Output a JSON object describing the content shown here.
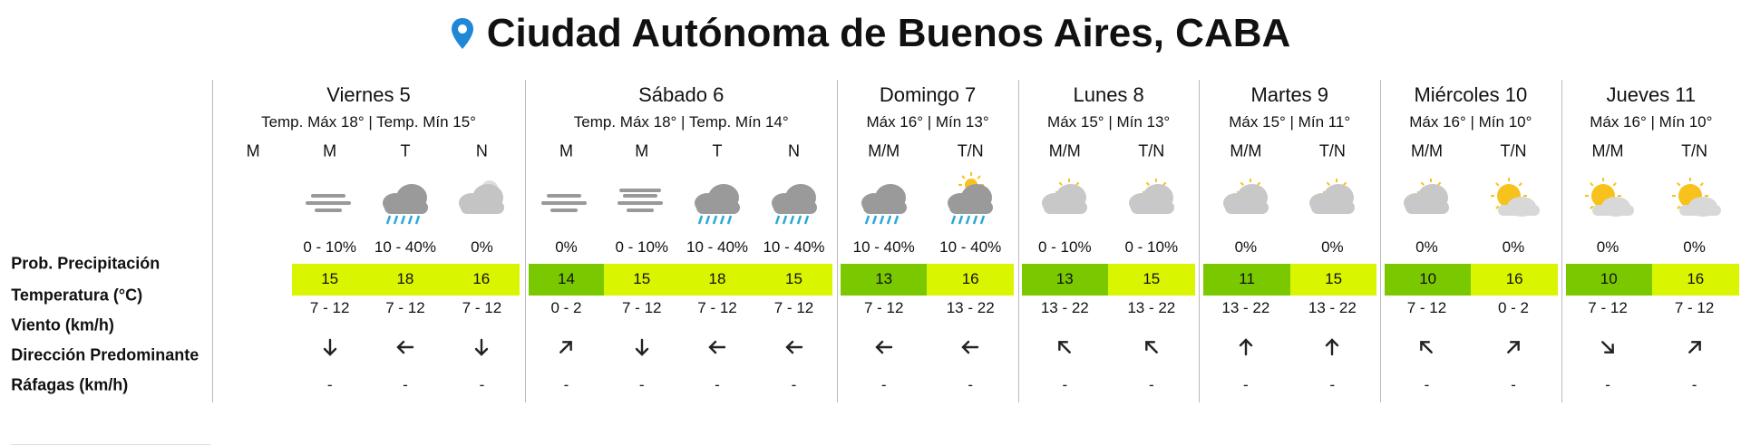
{
  "header": {
    "title": "Ciudad Autónoma de Buenos Aires, CABA"
  },
  "row_labels": [
    "Prob. Precipitación",
    "Temperatura (°C)",
    "Viento (km/h)",
    "Dirección Predominante",
    "Ráfagas (km/h)"
  ],
  "days": [
    {
      "name": "Viernes 5",
      "summary": "Temp. Máx 18° | Temp. Mín 15°",
      "periods": [
        {
          "label": "M"
        },
        {
          "label": "M",
          "precip": "0 - 10%",
          "temp": 15,
          "wind": "7 - 12",
          "gust": "-"
        },
        {
          "label": "T",
          "precip": "10 - 40%",
          "temp": 18,
          "wind": "7 - 12",
          "gust": "-"
        },
        {
          "label": "N",
          "precip": "0%",
          "temp": 16,
          "wind": "7 - 12",
          "gust": "-"
        }
      ]
    },
    {
      "name": "Sábado 6",
      "summary": "Temp. Máx 18° | Temp. Mín 14°",
      "periods": [
        {
          "label": "M",
          "precip": "0%",
          "temp": 14,
          "wind": "0 - 2",
          "gust": "-"
        },
        {
          "label": "M",
          "precip": "0 - 10%",
          "temp": 15,
          "wind": "7 - 12",
          "gust": "-"
        },
        {
          "label": "T",
          "precip": "10 - 40%",
          "temp": 18,
          "wind": "7 - 12",
          "gust": "-"
        },
        {
          "label": "N",
          "precip": "10 - 40%",
          "temp": 15,
          "wind": "7 - 12",
          "gust": "-"
        }
      ]
    },
    {
      "name": "Domingo 7",
      "summary": "Máx 16° | Mín 13°",
      "periods": [
        {
          "label": "M/M",
          "precip": "10 - 40%",
          "temp": 13,
          "wind": "7 - 12",
          "gust": "-"
        },
        {
          "label": "T/N",
          "precip": "10 - 40%",
          "temp": 16,
          "wind": "13 - 22",
          "gust": "-"
        }
      ]
    },
    {
      "name": "Lunes 8",
      "summary": "Máx 15° | Mín 13°",
      "periods": [
        {
          "label": "M/M",
          "precip": "0 - 10%",
          "temp": 13,
          "wind": "13 - 22",
          "gust": "-"
        },
        {
          "label": "T/N",
          "precip": "0 - 10%",
          "temp": 15,
          "wind": "13 - 22",
          "gust": "-"
        }
      ]
    },
    {
      "name": "Martes 9",
      "summary": "Máx 15° | Mín 11°",
      "periods": [
        {
          "label": "M/M",
          "precip": "0%",
          "temp": 11,
          "wind": "13 - 22",
          "gust": "-"
        },
        {
          "label": "T/N",
          "precip": "0%",
          "temp": 15,
          "wind": "13 - 22",
          "gust": "-"
        }
      ]
    },
    {
      "name": "Miércoles 10",
      "summary": "Máx 16° | Mín 10°",
      "periods": [
        {
          "label": "M/M",
          "precip": "0%",
          "temp": 10,
          "wind": "7 - 12",
          "gust": "-"
        },
        {
          "label": "T/N",
          "precip": "0%",
          "temp": 16,
          "wind": "0 - 2",
          "gust": "-"
        }
      ]
    },
    {
      "name": "Jueves 11",
      "summary": "Máx 16° | Mín 10°",
      "periods": [
        {
          "label": "M/M",
          "precip": "0%",
          "temp": 10,
          "wind": "7 - 12",
          "gust": "-"
        },
        {
          "label": "T/N",
          "precip": "0%",
          "temp": 16,
          "wind": "7 - 12",
          "gust": "-"
        }
      ]
    }
  ]
}
